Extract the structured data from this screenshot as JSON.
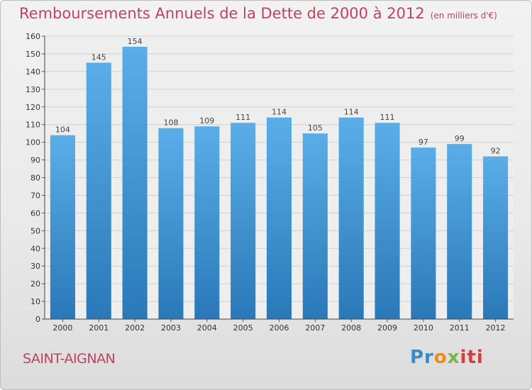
{
  "chart_data": {
    "type": "bar",
    "title": "Remboursements Annuels de la Dette de 2000 à 2012",
    "subtitle": "(en milliers d'€)",
    "categories": [
      "2000",
      "2001",
      "2002",
      "2003",
      "2004",
      "2005",
      "2006",
      "2007",
      "2008",
      "2009",
      "2010",
      "2011",
      "2012"
    ],
    "values": [
      104,
      145,
      154,
      108,
      109,
      111,
      114,
      105,
      114,
      111,
      97,
      99,
      92
    ],
    "ylim": [
      0,
      160
    ],
    "yticks": [
      0,
      10,
      20,
      30,
      40,
      50,
      60,
      70,
      80,
      90,
      100,
      110,
      120,
      130,
      140,
      150,
      160
    ],
    "grid": true,
    "legend": "none",
    "colors": {
      "bar_light": "#5aaee8",
      "bar_dark": "#2a78b8",
      "grid": "#d0d0d0",
      "title": "#c3405f"
    }
  },
  "footer": {
    "town": "SAINT-AIGNAN",
    "logo_parts": [
      "Pr",
      "o",
      "x",
      "iti"
    ]
  }
}
